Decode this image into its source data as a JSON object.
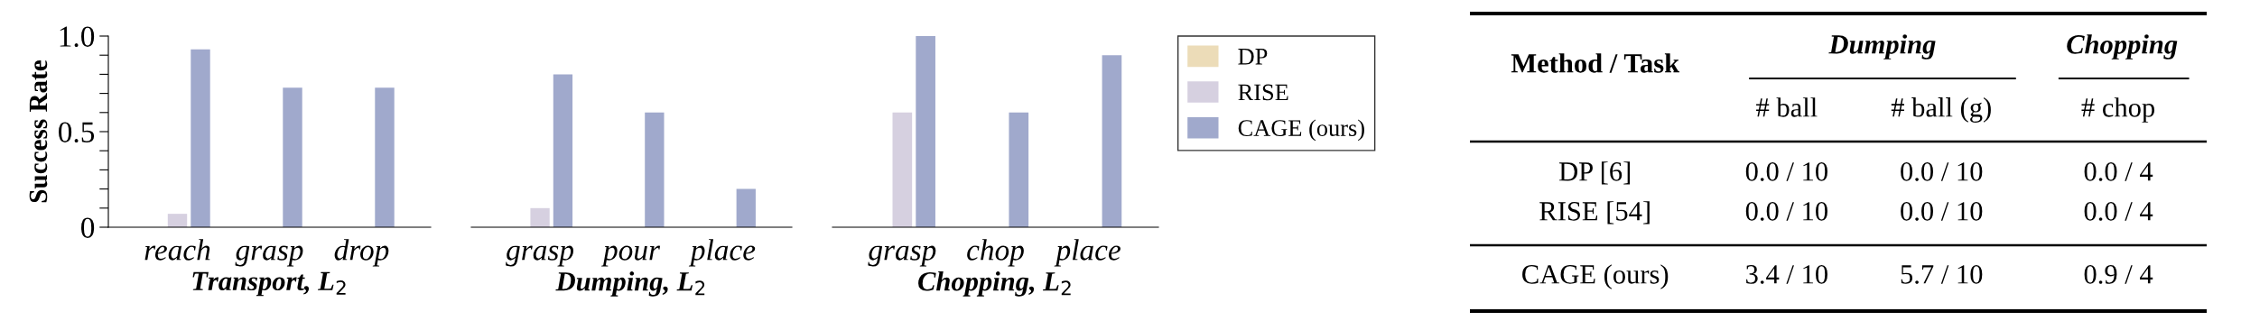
{
  "chart_data": [
    {
      "type": "bar",
      "ylabel": "Success Rate",
      "xlabel": "Transport, L$_{2}$",
      "categories": [
        "reach",
        "grasp",
        "drop"
      ],
      "ylim": [
        0,
        1
      ],
      "yticks": [
        0,
        {
          "value": 0.1,
          "label": null
        },
        {
          "value": 0.2,
          "label": null
        },
        {
          "value": 0.3,
          "label": null
        },
        {
          "value": 0.4,
          "label": null
        },
        0.5,
        {
          "value": 0.6,
          "label": null
        },
        {
          "value": 0.7,
          "label": null
        },
        {
          "value": 0.8,
          "label": null
        },
        {
          "value": 0.9,
          "label": null
        },
        {
          "value": 1,
          "label": "1.0"
        }
      ],
      "series": [
        {
          "color": "#ecdcb8",
          "values": [
            0,
            0,
            0
          ]
        },
        {
          "color": "#d6d0e0",
          "values": [
            0.07,
            0,
            0
          ]
        },
        {
          "color": "#a0a9cc",
          "values": [
            0.93,
            0.73,
            0.73
          ]
        }
      ]
    },
    {
      "type": "bar",
      "xlabel": "Dumping, L$_{2}$",
      "categories": [
        "grasp",
        "pour",
        "place"
      ],
      "ylim": [
        0,
        1
      ],
      "tick_labels": "x",
      "series": [
        {
          "color": "#ecdcb8",
          "values": [
            0,
            0,
            0
          ]
        },
        {
          "color": "#d6d0e0",
          "values": [
            0.1,
            0,
            0
          ]
        },
        {
          "color": "#a0a9cc",
          "values": [
            0.8,
            0.6,
            0.2
          ]
        }
      ]
    },
    {
      "type": "bar",
      "xlabel": "Chopping, L$_{2}$",
      "categories": [
        "grasp",
        "chop",
        "place"
      ],
      "ylim": [
        0,
        1
      ],
      "tick_labels": "x",
      "legend": "right",
      "series": [
        {
          "name": "DP",
          "color": "#ecdcb8",
          "values": [
            0,
            0,
            0
          ]
        },
        {
          "name": "RISE",
          "color": "#d6d0e0",
          "values": [
            0.6,
            0,
            0
          ]
        },
        {
          "name": "CAGE (ours)",
          "color": "#a0a9cc",
          "values": [
            1.0,
            0.6,
            0.9
          ]
        }
      ]
    },
    {
      "type": "other",
      "annotations": [
        "Method / Task",
        "Dumping",
        "Chopping",
        "# ball",
        "# ball (g)",
        "# chop",
        "DP [6]",
        "0.0 / 10",
        "0.0 / 10",
        "0.0 / 4",
        "RISE [54]",
        "0.0 / 10",
        "0.0 / 10",
        "0.0 / 4",
        "CAGE (ours)",
        "3.4 / 10",
        "5.7 / 10",
        "0.9 / 4"
      ]
    }
  ]
}
